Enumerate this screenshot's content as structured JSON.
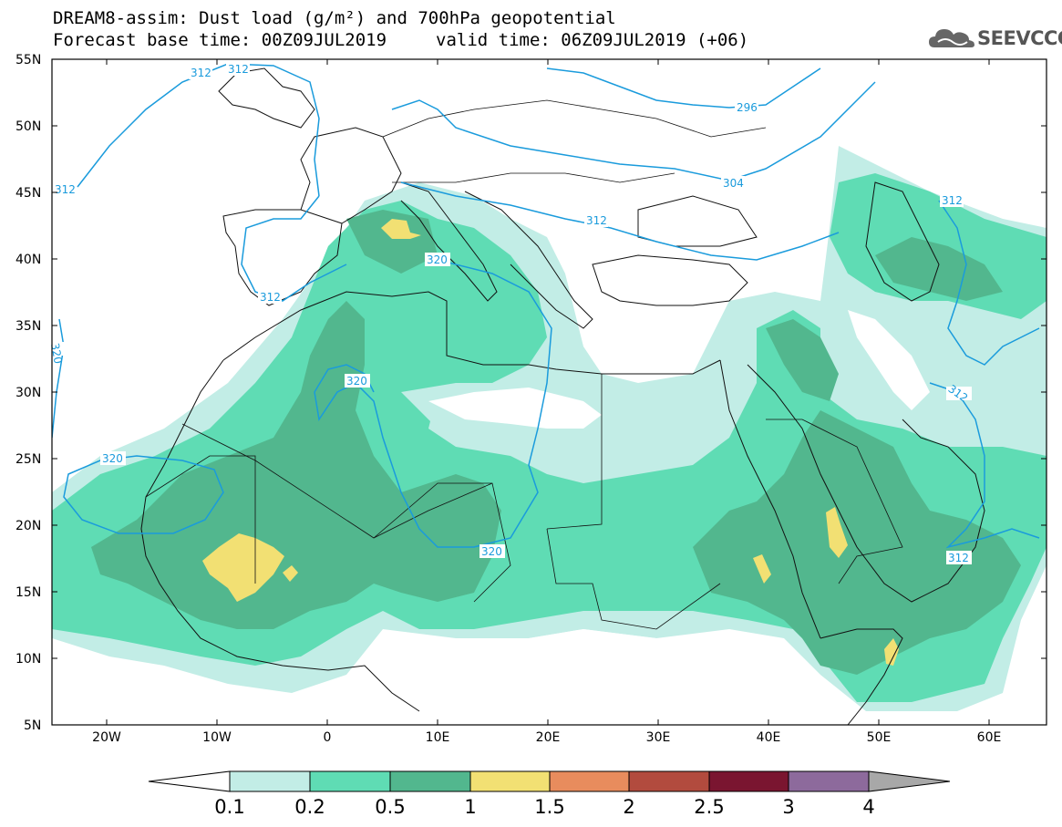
{
  "title": {
    "line1": "DREAM8-assim: Dust load (g/m²) and 700hPa geopotential",
    "line2": "Forecast base time: 00Z09JUL2019",
    "valid": "valid time: 06Z09JUL2019 (+06)"
  },
  "logo": {
    "text": "SEEVCCC",
    "icon": "cloud-icon"
  },
  "axes": {
    "lat_labels": [
      "55N",
      "50N",
      "45N",
      "40N",
      "35N",
      "30N",
      "25N",
      "20N",
      "15N",
      "10N",
      "5N"
    ],
    "lon_labels": [
      "20W",
      "10W",
      "0",
      "10E",
      "20E",
      "30E",
      "40E",
      "50E",
      "60E"
    ]
  },
  "contours": {
    "labels": [
      "312",
      "312",
      "312",
      "312",
      "296",
      "304",
      "312",
      "320",
      "312",
      "320",
      "320",
      "320",
      "312",
      "312",
      "320"
    ],
    "color": "#1a9bdc"
  },
  "colorbar": {
    "labels": [
      "0.1",
      "0.2",
      "0.5",
      "1",
      "1.5",
      "2",
      "2.5",
      "3",
      "4"
    ],
    "colors": [
      "#ffffff",
      "#c2ede6",
      "#5fdcb4",
      "#52b78e",
      "#f2e073",
      "#e88c5d",
      "#b24b3e",
      "#7a1530",
      "#8d6a9c",
      "#a8a8a8"
    ]
  },
  "dust_colors": {
    "light": "#c2ede6",
    "medium": "#5fdcb4",
    "dark": "#52b78e",
    "yellow": "#f2e073"
  }
}
